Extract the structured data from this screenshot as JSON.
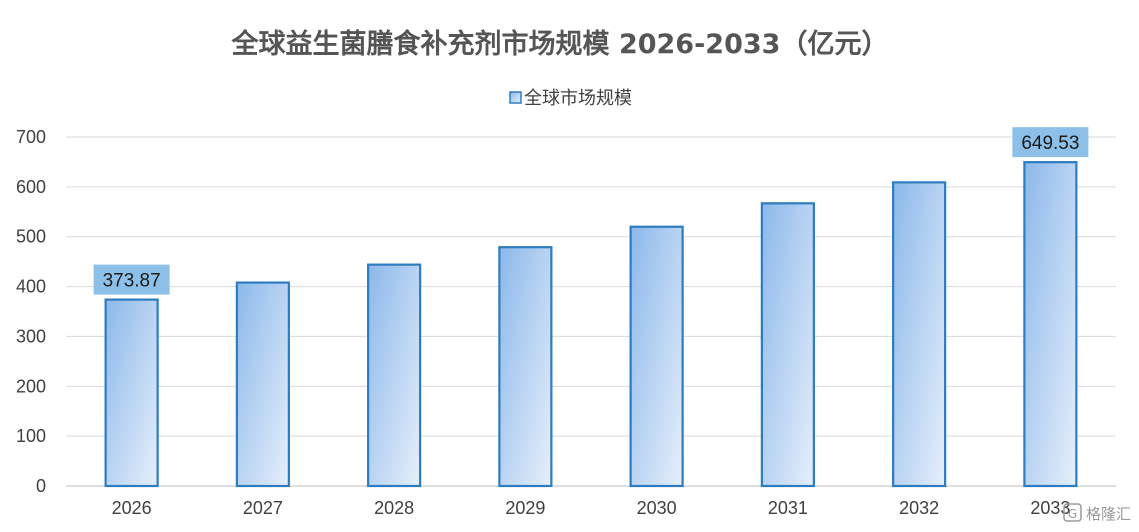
{
  "chart_data": {
    "type": "bar",
    "title": "全球益生菌膳食补充剂市场规模 2026-2033（亿元）",
    "categories": [
      "2026",
      "2027",
      "2028",
      "2029",
      "2030",
      "2031",
      "2032",
      "2033"
    ],
    "series": [
      {
        "name": "全球市场规模",
        "values": [
          373.87,
          408,
          444,
          479,
          520,
          567,
          609,
          649.53
        ]
      }
    ],
    "data_labels": [
      "373.87",
      "",
      "",
      "",
      "",
      "",
      "",
      "649.53"
    ],
    "ylim": [
      0,
      700
    ],
    "yticks": [
      "0",
      "100",
      "200",
      "300",
      "400",
      "500",
      "600",
      "700"
    ],
    "xlabel": "",
    "ylabel": "",
    "grid": true,
    "legend_position": "top-center",
    "colors": {
      "bar_fill_start": "#8cb8ea",
      "bar_fill_end": "#e6effb",
      "bar_border": "#2e7cc0",
      "label_box": "#8cc0e8",
      "grid": "#d9d9d9",
      "axis": "#bfbfbf"
    }
  },
  "watermark": {
    "text": "格隆汇",
    "icon": "gelonghui-logo-icon"
  }
}
